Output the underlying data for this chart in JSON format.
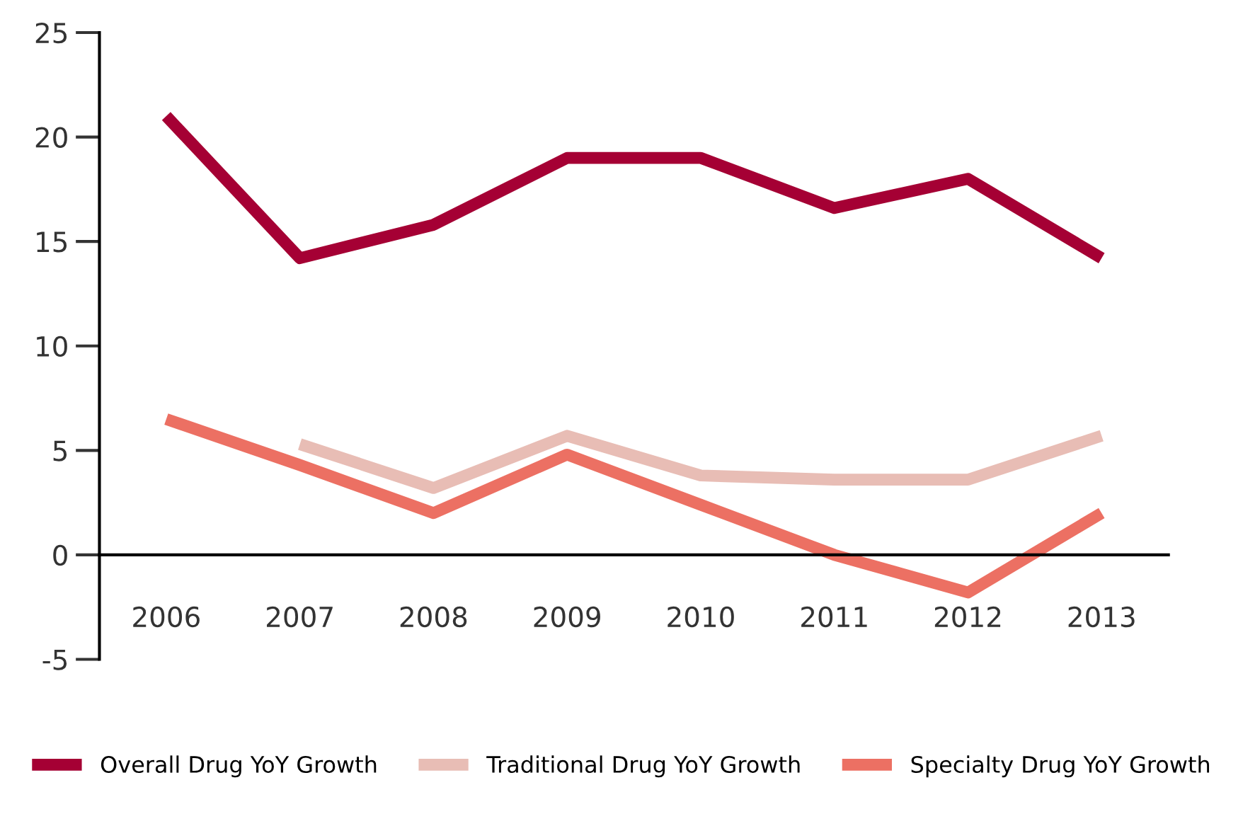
{
  "chart_data": {
    "type": "line",
    "categories": [
      "2006",
      "2007",
      "2008",
      "2009",
      "2010",
      "2011",
      "2012",
      "2013"
    ],
    "series": [
      {
        "name": "Overall Drug YoY Growth",
        "color": "#a50034",
        "values": [
          21,
          14.2,
          15.8,
          19,
          19,
          16.6,
          18,
          14.2
        ]
      },
      {
        "name": "Traditional Drug YoY Growth",
        "color": "#e8bdb5",
        "values": [
          null,
          5.3,
          3.2,
          5.7,
          3.8,
          3.6,
          3.6,
          5.7
        ]
      },
      {
        "name": "Specialty Drug YoY Growth",
        "color": "#ec7063",
        "values": [
          6.5,
          4.3,
          2.0,
          4.8,
          2.4,
          0,
          -1.8,
          2.0
        ]
      }
    ],
    "ylim": [
      -5,
      25
    ],
    "yticks": [
      -5,
      0,
      5,
      10,
      15,
      20,
      25
    ],
    "grid": false,
    "legend": "bottom",
    "marker": "none",
    "line_style": "solid"
  }
}
